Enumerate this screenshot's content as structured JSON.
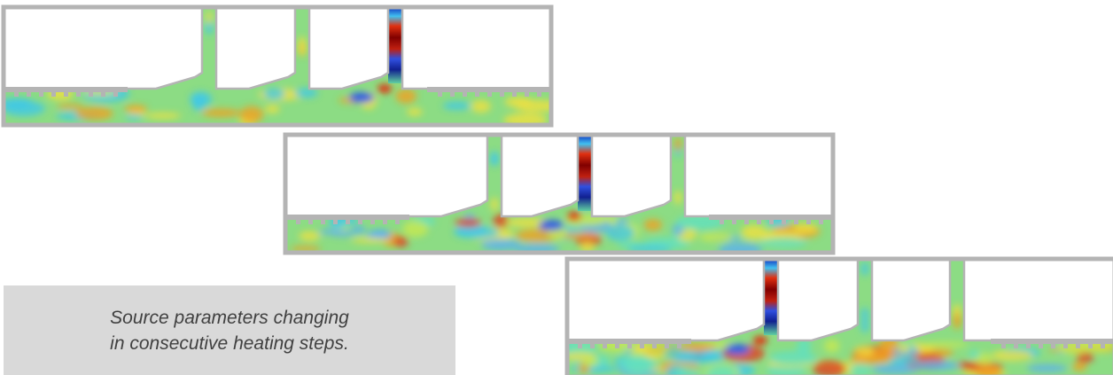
{
  "caption": {
    "line1": "Source parameters changing",
    "line2": "in consecutive heating steps."
  }
}
